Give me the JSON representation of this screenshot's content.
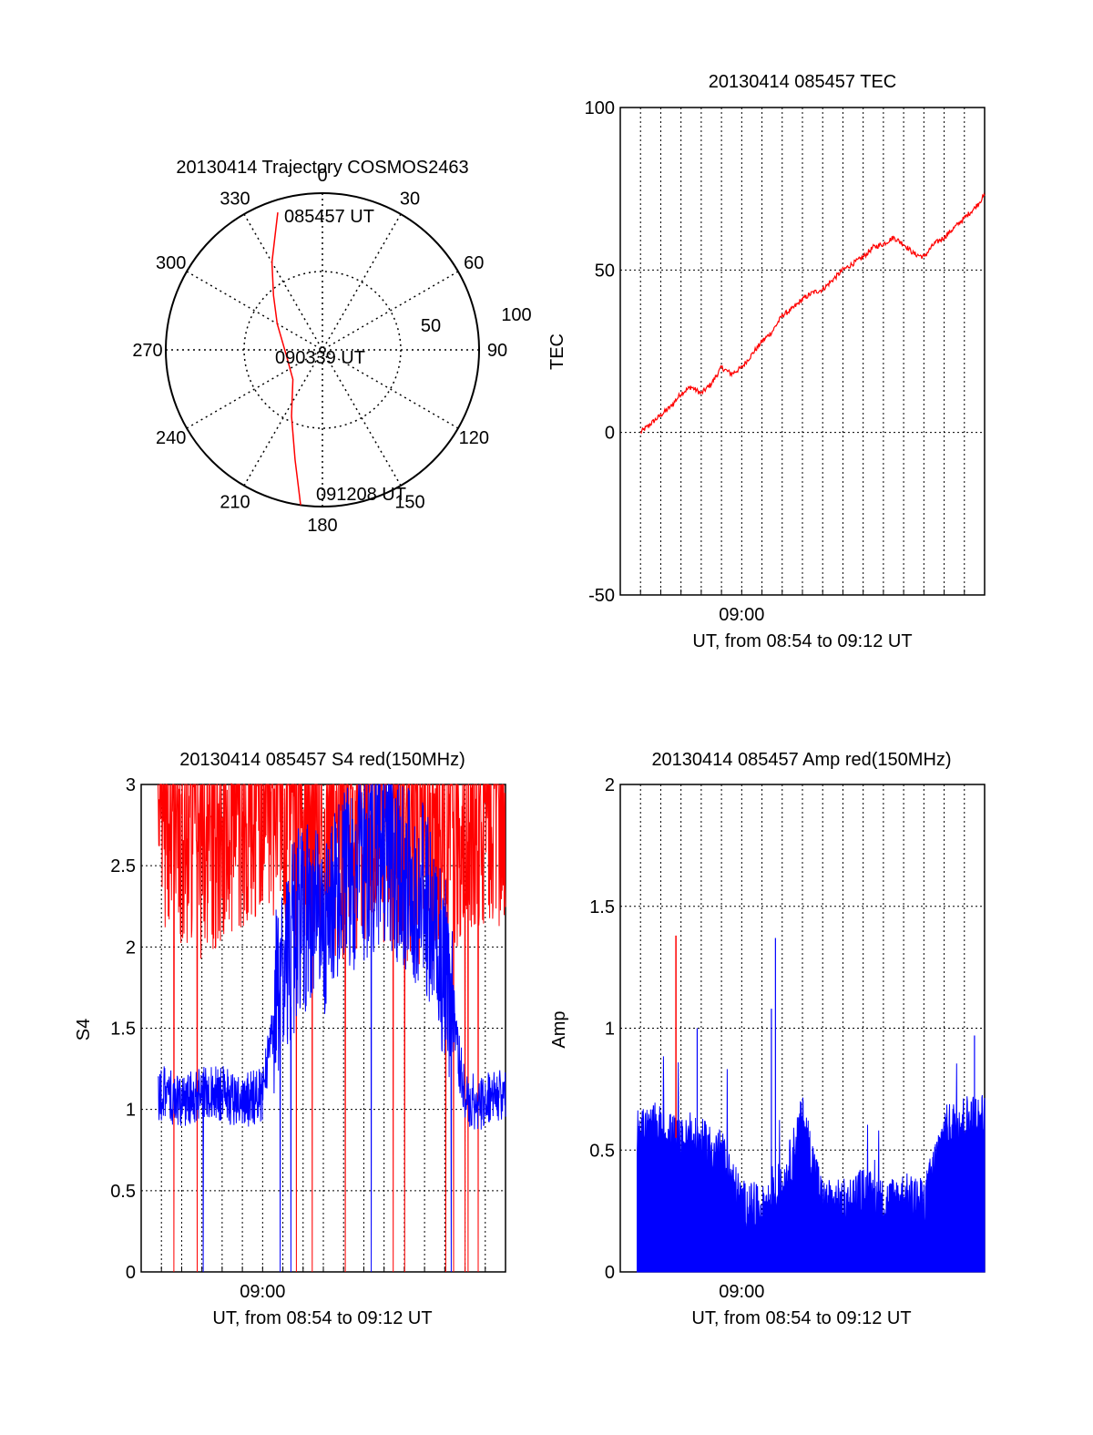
{
  "colors": {
    "red": "#ff0000",
    "blue": "#0000ff",
    "axis": "#000000"
  },
  "chart_data": [
    {
      "type": "polar",
      "title": "20130414 Trajectory COSMOS2463",
      "azimuth_labels": [
        "0",
        "30",
        "60",
        "90",
        "120",
        "150",
        "180",
        "210",
        "240",
        "270",
        "300",
        "330"
      ],
      "radial_labels": [
        "50",
        "100"
      ],
      "radial_ticks": [
        50,
        100
      ],
      "grid": true,
      "labels": {
        "start": "085457 UT",
        "mid": "090339 UT",
        "end": "091208 UT"
      },
      "series": [
        {
          "color": "red",
          "points": [
            {
              "az": 342,
              "zen": 83
            },
            {
              "az": 337,
              "zen": 70
            },
            {
              "az": 330,
              "zen": 58
            },
            {
              "az": 318,
              "zen": 42
            },
            {
              "az": 300,
              "zen": 30
            },
            {
              "az": 262,
              "zen": 21
            },
            {
              "az": 225,
              "zen": 24
            },
            {
              "az": 205,
              "zen": 42
            },
            {
              "az": 194,
              "zen": 65
            },
            {
              "az": 188,
              "zen": 90
            }
          ]
        }
      ]
    },
    {
      "type": "line",
      "title": "20130414 085457 TEC",
      "ylabel": "TEC",
      "xlabel": "UT, from 08:54 to 09:12 UT",
      "xlim": [
        "08:54:00",
        "09:12:00"
      ],
      "ylim": [
        -50,
        100
      ],
      "yticks": [
        "100",
        "50",
        "0",
        "-50"
      ],
      "xticks": [
        "09:00"
      ],
      "grid": true,
      "series": [
        {
          "color": "red",
          "x": [
            "08:55:00",
            "08:55:45",
            "08:56:30",
            "08:57:00",
            "08:57:30",
            "08:58:00",
            "08:58:30",
            "08:59:00",
            "08:59:30",
            "09:00:00",
            "09:00:30",
            "09:01:00",
            "09:01:30",
            "09:02:00",
            "09:02:30",
            "09:03:00",
            "09:03:30",
            "09:04:00",
            "09:04:30",
            "09:05:00",
            "09:05:30",
            "09:06:00",
            "09:06:30",
            "09:07:00",
            "09:07:30",
            "09:08:00",
            "09:08:30",
            "09:09:00",
            "09:09:30",
            "09:10:00",
            "09:10:30",
            "09:11:00",
            "09:11:30",
            "09:12:00"
          ],
          "y": [
            0,
            4,
            8,
            12,
            14,
            12,
            15,
            20,
            18,
            20,
            24,
            28,
            31,
            36,
            38,
            41,
            43,
            44,
            47,
            50,
            52,
            54,
            57,
            58,
            60,
            58,
            55,
            54,
            58,
            60,
            63,
            66,
            69,
            73
          ]
        }
      ]
    },
    {
      "type": "line",
      "title": "20130414 085457 S4 red(150MHz)",
      "ylabel": "S4",
      "xlabel": "UT, from 08:54 to 09:12 UT",
      "xlim": [
        "08:54:00",
        "09:12:00"
      ],
      "ylim": [
        0,
        3
      ],
      "yticks": [
        "3",
        "2.5",
        "2",
        "1.5",
        "1",
        "0.5",
        "0"
      ],
      "xticks": [
        "09:00"
      ],
      "grid": true,
      "series": [
        {
          "color": "red",
          "description_noise": "spiky values between about 2.0 and 3.0 clipped at 3, with occasional drops to 0",
          "x": [
            "08:55:00",
            "08:56:00",
            "08:57:00",
            "08:58:00",
            "08:59:00",
            "09:00:00",
            "09:01:00",
            "09:02:00",
            "09:03:00",
            "09:04:00",
            "09:05:00",
            "09:06:00",
            "09:07:00",
            "09:08:00",
            "09:09:00",
            "09:10:00",
            "09:11:00",
            "09:12:00"
          ],
          "y": [
            2.6,
            2.5,
            2.4,
            2.5,
            2.6,
            2.7,
            2.6,
            2.5,
            2.4,
            2.4,
            2.5,
            2.5,
            2.4,
            2.3,
            2.4,
            2.5,
            2.6,
            2.6
          ]
        },
        {
          "color": "blue",
          "x": [
            "08:55:00",
            "08:56:00",
            "08:57:00",
            "08:58:00",
            "08:59:00",
            "09:00:00",
            "09:01:00",
            "09:02:00",
            "09:03:00",
            "09:04:00",
            "09:05:00",
            "09:06:00",
            "09:07:00",
            "09:08:00",
            "09:09:00",
            "09:10:00",
            "09:11:00",
            "09:12:00"
          ],
          "y": [
            1.1,
            1.05,
            1.1,
            1.1,
            1.05,
            1.1,
            1.9,
            2.2,
            2.1,
            2.4,
            2.5,
            2.6,
            2.4,
            2.3,
            1.9,
            1.05,
            1.05,
            1.1
          ]
        }
      ]
    },
    {
      "type": "line",
      "title": "20130414 085457 Amp red(150MHz)",
      "ylabel": "Amp",
      "xlabel": "UT, from 08:54 to 09:12 UT",
      "xlim": [
        "08:54:00",
        "09:12:00"
      ],
      "ylim": [
        0,
        2
      ],
      "yticks": [
        "2",
        "1.5",
        "1",
        "0.5",
        "0"
      ],
      "xticks": [
        "09:00"
      ],
      "grid": true,
      "series": [
        {
          "color": "blue",
          "x": [
            "08:55:00",
            "08:56:00",
            "08:57:00",
            "08:58:00",
            "08:59:00",
            "09:00:00",
            "09:01:00",
            "09:02:00",
            "09:03:00",
            "09:04:00",
            "09:05:00",
            "09:06:00",
            "09:07:00",
            "09:08:00",
            "09:09:00",
            "09:10:00",
            "09:11:00",
            "09:12:00"
          ],
          "y": [
            0.55,
            0.55,
            0.5,
            0.5,
            0.45,
            0.25,
            0.22,
            0.3,
            0.6,
            0.25,
            0.25,
            0.3,
            0.25,
            0.28,
            0.25,
            0.55,
            0.6,
            0.6
          ]
        },
        {
          "color": "red",
          "x": [
            "08:56:45"
          ],
          "y": [
            1.38
          ]
        }
      ]
    }
  ]
}
